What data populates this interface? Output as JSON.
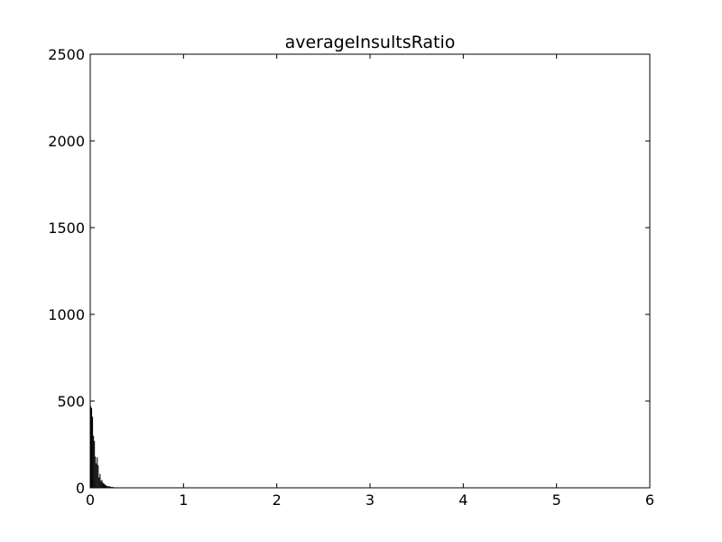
{
  "chart_data": {
    "type": "bar",
    "title": "averageInsultsRatio",
    "xlabel": "",
    "ylabel": "",
    "xlim": [
      0,
      6
    ],
    "ylim": [
      0,
      2500
    ],
    "x_ticks": [
      "0",
      "1",
      "2",
      "3",
      "4",
      "5",
      "6"
    ],
    "y_ticks": [
      "0",
      "500",
      "1000",
      "1500",
      "2000",
      "2500"
    ],
    "grid": false,
    "legend": "none",
    "bar_color": "#000000",
    "bin_width": 0.01,
    "bins": [
      {
        "x": 0.0,
        "value": 470
      },
      {
        "x": 0.01,
        "value": 460
      },
      {
        "x": 0.02,
        "value": 410
      },
      {
        "x": 0.03,
        "value": 300
      },
      {
        "x": 0.04,
        "value": 270
      },
      {
        "x": 0.05,
        "value": 180
      },
      {
        "x": 0.06,
        "value": 140
      },
      {
        "x": 0.07,
        "value": 175
      },
      {
        "x": 0.08,
        "value": 130
      },
      {
        "x": 0.09,
        "value": 60
      },
      {
        "x": 0.1,
        "value": 80
      },
      {
        "x": 0.11,
        "value": 40
      },
      {
        "x": 0.12,
        "value": 45
      },
      {
        "x": 0.13,
        "value": 30
      },
      {
        "x": 0.14,
        "value": 25
      },
      {
        "x": 0.15,
        "value": 20
      },
      {
        "x": 0.16,
        "value": 15
      },
      {
        "x": 0.17,
        "value": 12
      },
      {
        "x": 0.18,
        "value": 10
      },
      {
        "x": 0.19,
        "value": 8
      },
      {
        "x": 0.2,
        "value": 10
      },
      {
        "x": 0.21,
        "value": 6
      },
      {
        "x": 0.22,
        "value": 5
      },
      {
        "x": 0.23,
        "value": 5
      },
      {
        "x": 0.24,
        "value": 4
      },
      {
        "x": 0.25,
        "value": 3
      },
      {
        "x": 0.27,
        "value": 3
      },
      {
        "x": 0.29,
        "value": 2
      },
      {
        "x": 0.31,
        "value": 2
      },
      {
        "x": 0.33,
        "value": 2
      },
      {
        "x": 0.35,
        "value": 1
      },
      {
        "x": 0.38,
        "value": 1
      },
      {
        "x": 0.42,
        "value": 1
      }
    ]
  }
}
